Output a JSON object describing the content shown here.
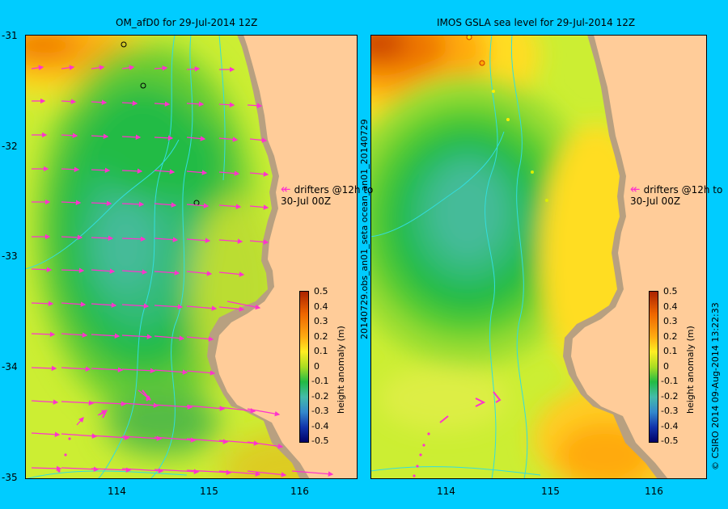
{
  "panels": [
    {
      "title": "OM_afD0 for 29-Jul-2014 12Z"
    },
    {
      "title": "IMOS GSLA sea level  for 29-Jul-2014 12Z"
    }
  ],
  "y_axis_labels": [
    "-31",
    "-32",
    "-33",
    "-34",
    "-35"
  ],
  "x_axis_labels": [
    "114",
    "115",
    "116"
  ],
  "drifter_note": {
    "line1": "drifters @12h to",
    "line2": "30-Jul 00Z",
    "arrow": "↞"
  },
  "colorbar": {
    "label": "height anomaly (m)",
    "ticks": [
      "0.5",
      "0.4",
      "0.3",
      "0.2",
      "0.1",
      "0",
      "-0.1",
      "-0.2",
      "-0.3",
      "-0.4",
      "-0.5"
    ]
  },
  "side_text": {
    "files": "20140729.obs_an01_seta     ocean_an01_20140729",
    "credit": "© CSIRO 2014   09-Aug-2014 13:22:33"
  },
  "colors": {
    "background": "#00ccff",
    "land": "#ffcc99",
    "shelf": "#b8a080",
    "arrows": "#ff33cc",
    "bathymetry": "#33dddd"
  }
}
